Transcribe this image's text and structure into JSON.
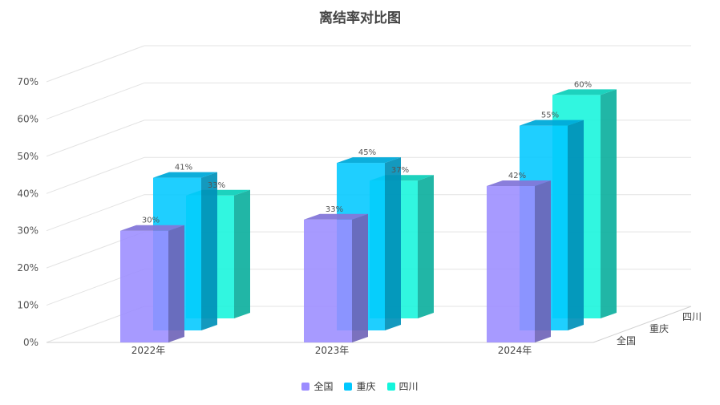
{
  "chart_data": {
    "type": "bar",
    "title": "离结率对比图",
    "categories": [
      "2022年",
      "2023年",
      "2024年"
    ],
    "series": [
      {
        "name": "全国",
        "values": [
          30,
          33,
          42
        ],
        "labels": [
          "30%",
          "33%",
          "42%"
        ],
        "color": "#9b8cff"
      },
      {
        "name": "重庆",
        "values": [
          41,
          45,
          55
        ],
        "labels": [
          "41%",
          "45%",
          "55%"
        ],
        "color": "#00c8ff"
      },
      {
        "name": "四川",
        "values": [
          33,
          37,
          60
        ],
        "labels": [
          "33%",
          "37%",
          "60%"
        ],
        "color": "#14f5dc"
      }
    ],
    "ylim": [
      0,
      70
    ],
    "yticks": [
      "0%",
      "10%",
      "20%",
      "30%",
      "40%",
      "50%",
      "60%",
      "70%"
    ],
    "grid": true,
    "legend": "bottom-center",
    "style": "3d"
  }
}
